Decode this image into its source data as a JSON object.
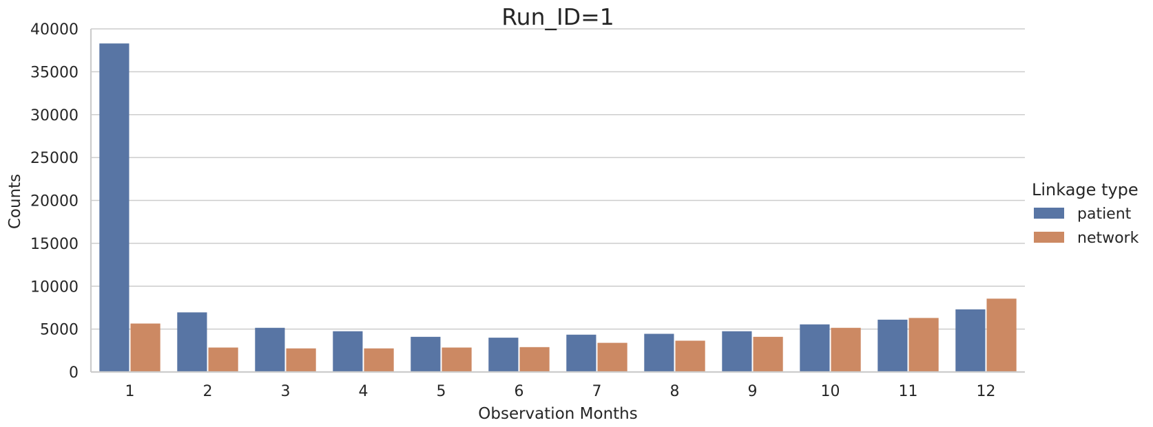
{
  "chart_data": {
    "type": "bar",
    "title": "Run_ID=1",
    "xlabel": "Observation Months",
    "ylabel": "Counts",
    "categories": [
      "1",
      "2",
      "3",
      "4",
      "5",
      "6",
      "7",
      "8",
      "9",
      "10",
      "11",
      "12"
    ],
    "ylim": [
      0,
      40000
    ],
    "yticks": [
      0,
      5000,
      10000,
      15000,
      20000,
      25000,
      30000,
      35000,
      40000
    ],
    "yticklabels": [
      "0",
      "5000",
      "10000",
      "15000",
      "20000",
      "25000",
      "30000",
      "35000",
      "40000"
    ],
    "grid": true,
    "legend_position": "right",
    "legend_title": "Linkage type",
    "series": [
      {
        "name": "patient",
        "color": "#5875a4",
        "values": [
          38300,
          6950,
          5150,
          4750,
          4100,
          4000,
          4350,
          4450,
          4750,
          5550,
          6100,
          7300
        ]
      },
      {
        "name": "network",
        "color": "#cc8963",
        "values": [
          5650,
          2850,
          2750,
          2750,
          2850,
          2900,
          3400,
          3650,
          4100,
          5150,
          6300,
          8550
        ]
      }
    ]
  }
}
